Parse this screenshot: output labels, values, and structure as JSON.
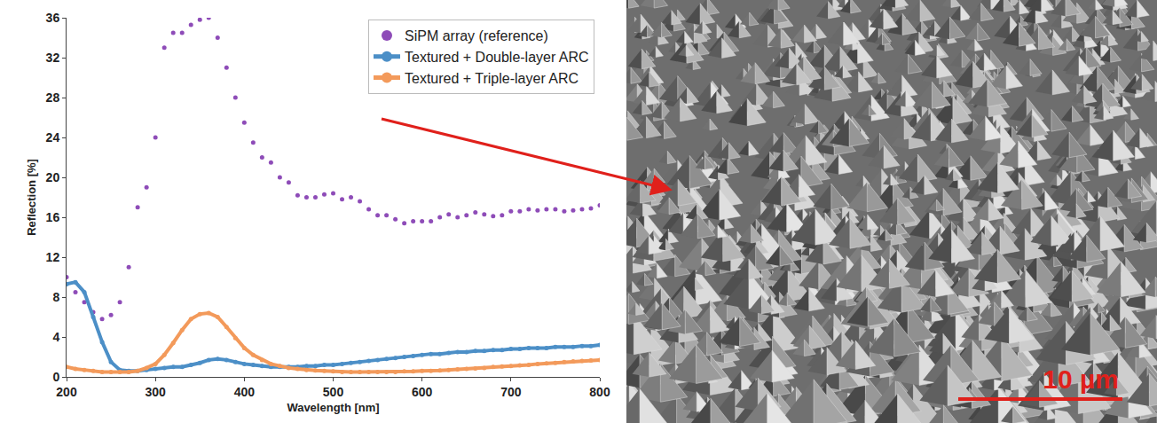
{
  "chart_data": {
    "type": "scatter",
    "x_label": "Wavelength [nm]",
    "y_label": "Reflection [%]",
    "xlim": [
      200,
      800
    ],
    "ylim": [
      0,
      36
    ],
    "xticks": [
      200,
      300,
      400,
      500,
      600,
      700,
      800
    ],
    "yticks": [
      0,
      4,
      8,
      12,
      16,
      20,
      24,
      28,
      32,
      36
    ],
    "grid": false,
    "legend": "top right",
    "x": [
      200,
      210,
      220,
      230,
      240,
      250,
      260,
      270,
      280,
      290,
      300,
      310,
      320,
      330,
      340,
      350,
      360,
      370,
      380,
      390,
      400,
      410,
      420,
      430,
      440,
      450,
      460,
      470,
      480,
      490,
      500,
      510,
      520,
      530,
      540,
      550,
      560,
      570,
      580,
      590,
      600,
      610,
      620,
      630,
      640,
      650,
      660,
      670,
      680,
      690,
      700,
      710,
      720,
      730,
      740,
      750,
      760,
      770,
      780,
      790,
      800
    ],
    "series": [
      {
        "name": "SiPM array (reference)",
        "color": "#8e4cb8",
        "marker": "circle",
        "values": [
          10,
          8.5,
          7.5,
          6.5,
          5.8,
          6.2,
          7.5,
          11,
          17,
          19,
          24,
          33,
          34.5,
          34.5,
          35.3,
          35.8,
          36,
          34,
          31,
          28,
          25.5,
          23.5,
          22,
          21.5,
          20,
          19.5,
          18.2,
          18,
          18,
          18.3,
          18.4,
          17.8,
          18,
          17.6,
          16.8,
          16.2,
          16.2,
          15.8,
          15.4,
          15.6,
          15.6,
          15.6,
          16,
          16.3,
          16,
          16.2,
          16.5,
          16.3,
          16.1,
          16.2,
          16.6,
          16.6,
          16.8,
          16.7,
          16.8,
          16.8,
          16.6,
          16.7,
          16.8,
          16.9,
          17.2
        ]
      },
      {
        "name": "Textured + Double-layer ARC",
        "color": "#4c8fc7",
        "marker": "circle",
        "line_style": "solid",
        "values": [
          9.3,
          9.5,
          8.5,
          6,
          3.5,
          1.5,
          0.7,
          0.6,
          0.6,
          0.7,
          0.8,
          0.9,
          1.0,
          1.0,
          1.2,
          1.4,
          1.7,
          1.8,
          1.7,
          1.5,
          1.3,
          1.2,
          1.1,
          1.0,
          1.0,
          1.0,
          1.0,
          1.1,
          1.1,
          1.2,
          1.2,
          1.3,
          1.4,
          1.5,
          1.6,
          1.7,
          1.8,
          1.9,
          2.0,
          2.1,
          2.2,
          2.3,
          2.3,
          2.4,
          2.5,
          2.5,
          2.6,
          2.6,
          2.7,
          2.7,
          2.8,
          2.8,
          2.9,
          2.9,
          2.9,
          3.0,
          3.0,
          3.0,
          3.1,
          3.1,
          3.2
        ]
      },
      {
        "name": "Textured + Triple-layer ARC",
        "color": "#f39a5b",
        "marker": "circle",
        "line_style": "solid",
        "values": [
          1.0,
          0.8,
          0.7,
          0.6,
          0.5,
          0.5,
          0.5,
          0.5,
          0.6,
          0.9,
          1.3,
          2.2,
          3.4,
          4.7,
          5.8,
          6.3,
          6.4,
          6.0,
          5.0,
          3.9,
          2.9,
          2.2,
          1.7,
          1.3,
          1.1,
          0.9,
          0.8,
          0.7,
          0.65,
          0.6,
          0.55,
          0.5,
          0.5,
          0.5,
          0.5,
          0.5,
          0.5,
          0.5,
          0.55,
          0.55,
          0.6,
          0.6,
          0.65,
          0.7,
          0.75,
          0.8,
          0.85,
          0.9,
          1.0,
          1.05,
          1.1,
          1.15,
          1.2,
          1.3,
          1.35,
          1.4,
          1.5,
          1.55,
          1.6,
          1.65,
          1.7
        ]
      }
    ]
  },
  "image": {
    "scale_bar": "10 µm"
  }
}
